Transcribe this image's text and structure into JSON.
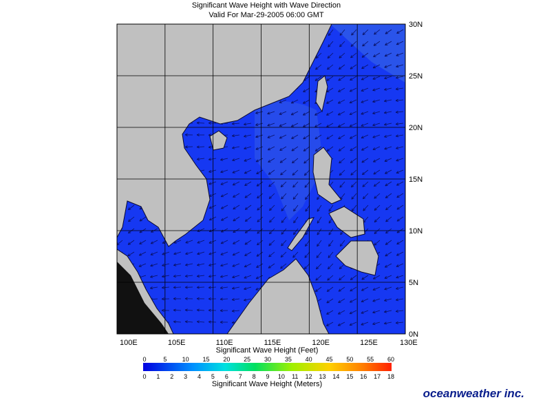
{
  "header": {
    "title": "Significant Wave Height with Wave Direction",
    "subtitle": "Valid For Mar-29-2005 06:00 GMT"
  },
  "map": {
    "lon_labels": [
      "100E",
      "105E",
      "110E",
      "115E",
      "120E",
      "125E",
      "130E"
    ],
    "lat_labels": [
      "0N",
      "5N",
      "10N",
      "15N",
      "20N",
      "25N",
      "30N"
    ]
  },
  "legend": {
    "feet_title": "Significant Wave Height (Feet)",
    "feet_labels": [
      0,
      5,
      10,
      15,
      20,
      25,
      30,
      35,
      40,
      45,
      50,
      55,
      60
    ],
    "meters_title": "Significant Wave Height (Meters)",
    "meters_labels": [
      0,
      1,
      2,
      3,
      4,
      5,
      6,
      7,
      8,
      9,
      10,
      11,
      12,
      13,
      14,
      15,
      16,
      17,
      18
    ]
  },
  "brand": "oceanweather inc."
}
